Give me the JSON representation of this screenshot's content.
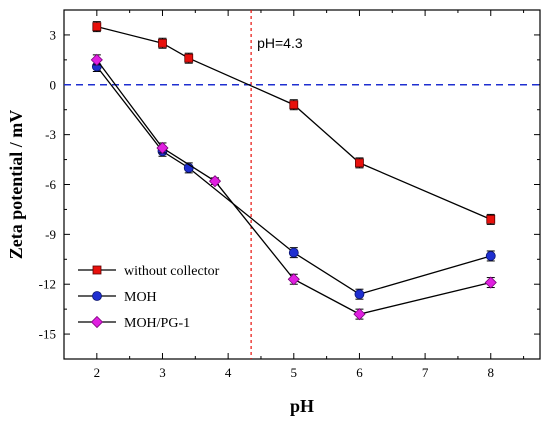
{
  "chart_data": {
    "type": "line",
    "xlabel": "pH",
    "ylabel": "Zeta potential / mV",
    "xlim": [
      1.5,
      8.75
    ],
    "ylim": [
      -16.5,
      4.5
    ],
    "xticks": [
      2,
      3,
      4,
      5,
      6,
      7,
      8
    ],
    "yticks": [
      3,
      0,
      -3,
      -6,
      -9,
      -12,
      -15
    ],
    "xtick_labels": [
      "2",
      "3",
      "4",
      "5",
      "6",
      "7",
      "8"
    ],
    "ytick_labels": [
      "3",
      "0",
      "-3",
      "-6",
      "-9",
      "-12",
      "-15"
    ],
    "grid": false,
    "legend_position": "bottom-left",
    "series": [
      {
        "name": "without collector",
        "color": "#e8100c",
        "marker": "square",
        "x": [
          2,
          3,
          3.4,
          5,
          6,
          8
        ],
        "y": [
          3.5,
          2.5,
          1.6,
          -1.2,
          -4.7,
          -8.1
        ],
        "err": [
          0.3,
          0.3,
          0.3,
          0.3,
          0.3,
          0.3
        ]
      },
      {
        "name": "MOH",
        "color": "#1f2fd0",
        "marker": "circle",
        "x": [
          2,
          3,
          3.4,
          5,
          6,
          8
        ],
        "y": [
          1.1,
          -4.0,
          -5.0,
          -10.1,
          -12.6,
          -10.3
        ],
        "err": [
          0.3,
          0.3,
          0.3,
          0.3,
          0.3,
          0.3
        ]
      },
      {
        "name": "MOH/PG-1",
        "color": "#e020e0",
        "marker": "diamond",
        "x": [
          2,
          3,
          3.8,
          5,
          6,
          8
        ],
        "y": [
          1.5,
          -3.8,
          -5.8,
          -11.7,
          -13.8,
          -11.9
        ],
        "err": [
          0.3,
          0.3,
          0.2,
          0.3,
          0.3,
          0.3
        ]
      }
    ],
    "annotations": [
      {
        "text": "pH=4.3",
        "x": 4.35,
        "kind": "vertical-line",
        "color": "#e8100c"
      },
      {
        "kind": "horizontal-line",
        "y": 0,
        "color": "#1f2fd0"
      }
    ]
  }
}
